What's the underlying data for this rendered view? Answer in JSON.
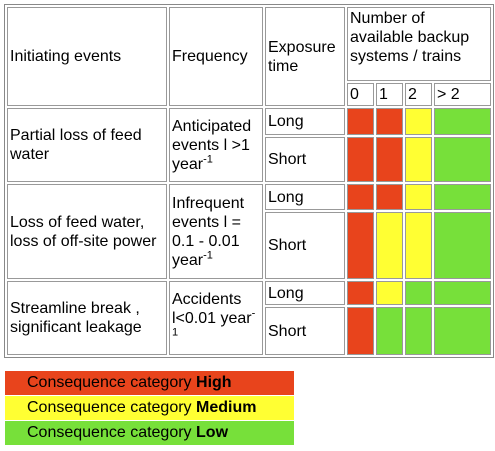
{
  "table": {
    "header": {
      "event": "Initiating events",
      "frequency": "Frequency",
      "exposure": "Exposure time",
      "backup": "Number of available backup systems / trains",
      "backup_counts": [
        "0",
        "1",
        "2",
        "> 2"
      ]
    },
    "rows": [
      {
        "event": "Partial loss of feed water",
        "frequency": {
          "text": "Anticipated events",
          "rate": "l >1 year",
          "sup": "-1"
        },
        "exposures": [
          {
            "time": "Long",
            "colors": [
              "#e8441c",
              "#e8441c",
              "#ffff33",
              "#77e03a"
            ]
          },
          {
            "time": "Short",
            "colors": [
              "#e8441c",
              "#e8441c",
              "#ffff33",
              "#77e03a"
            ]
          }
        ]
      },
      {
        "event": "Loss of feed water, loss of off-site power",
        "frequency": {
          "text": "Infrequent events",
          "rate": "l = 0.1 - 0.01 year",
          "sup": "-1"
        },
        "exposures": [
          {
            "time": "Long",
            "colors": [
              "#e8441c",
              "#e8441c",
              "#ffff33",
              "#77e03a"
            ]
          },
          {
            "time": "Short",
            "colors": [
              "#e8441c",
              "#ffff33",
              "#ffff33",
              "#77e03a"
            ]
          }
        ]
      },
      {
        "event": "Streamline break , significant leakage",
        "frequency": {
          "text": "Accidents",
          "rate": "l<0.01 year",
          "sup": "-1"
        },
        "exposures": [
          {
            "time": "Long",
            "colors": [
              "#e8441c",
              "#ffff33",
              "#77e03a",
              "#77e03a"
            ]
          },
          {
            "time": "Short",
            "colors": [
              "#e8441c",
              "#77e03a",
              "#77e03a",
              "#77e03a"
            ]
          }
        ]
      }
    ]
  },
  "legend": [
    {
      "text": "Consequence category",
      "level": "High",
      "color": "#e8441c"
    },
    {
      "text": "Consequence category",
      "level": "Medium",
      "color": "#ffff33"
    },
    {
      "text": "Consequence category",
      "level": "Low",
      "color": "#77e03a"
    }
  ]
}
